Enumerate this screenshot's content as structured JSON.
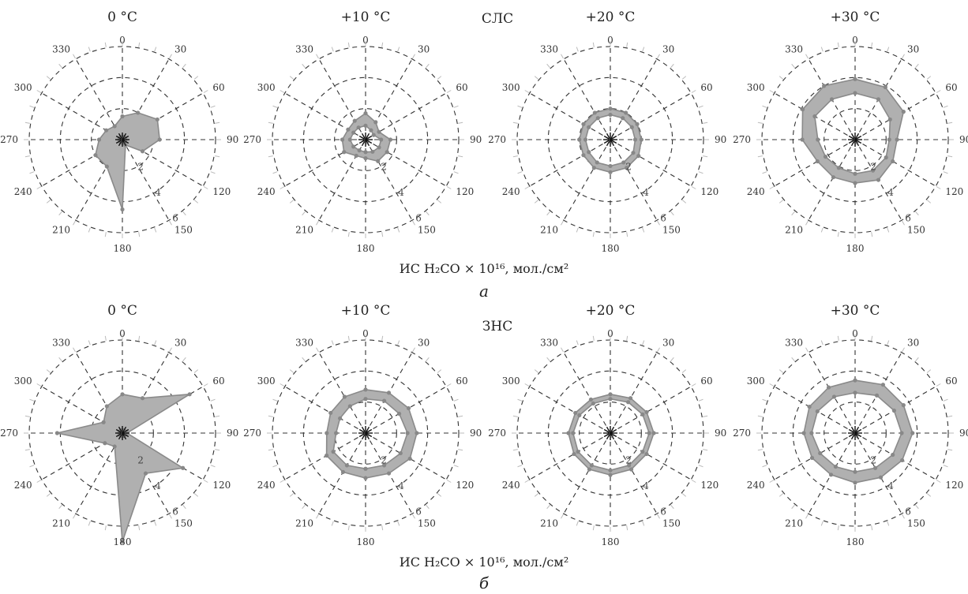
{
  "figure": {
    "rows": [
      {
        "panel_letter": "а",
        "group_label": "СЛС",
        "axis_caption": "ИС H₂CO × 10¹⁶, мол./см²"
      },
      {
        "panel_letter": "б",
        "group_label": "ЗНС",
        "axis_caption": "ИС H₂CO × 10¹⁶, мол./см²"
      }
    ]
  },
  "chart_data": [
    {
      "type": "radar",
      "row": 0,
      "group": "СЛС",
      "title": "0 °C",
      "angular_ticks": [
        "0",
        "30",
        "60",
        "90",
        "120",
        "150",
        "180",
        "210",
        "240",
        "270",
        "300",
        "330"
      ],
      "radial_ticks": [
        "0",
        "2",
        "4",
        "6"
      ],
      "rlim": [
        0,
        6
      ],
      "grid": true,
      "series": [
        {
          "inner": [
            0.2,
            0.2,
            0.2,
            0.2,
            0.2,
            0.2,
            0.2,
            0.2,
            0.2,
            0.2,
            0.2,
            0.2
          ],
          "outer": [
            1.5,
            2.0,
            2.6,
            2.4,
            1.5,
            0.4,
            4.5,
            2.0,
            2.0,
            1.5,
            1.2,
            1.0
          ]
        }
      ]
    },
    {
      "type": "radar",
      "row": 0,
      "group": "СЛС",
      "title": "+10 °C",
      "angular_ticks": [
        "0",
        "30",
        "60",
        "90",
        "120",
        "150",
        "180",
        "210",
        "240",
        "270",
        "300",
        "330"
      ],
      "radial_ticks": [
        "0",
        "2",
        "4",
        "6"
      ],
      "rlim": [
        0,
        6
      ],
      "grid": true,
      "series": [
        {
          "inner": [
            0.9,
            0.7,
            0.6,
            1.0,
            1.0,
            0.9,
            0.8,
            0.8,
            0.9,
            1.0,
            0.9,
            0.9
          ],
          "outer": [
            1.7,
            1.3,
            1.0,
            1.6,
            1.6,
            1.6,
            1.2,
            1.2,
            1.6,
            1.5,
            1.3,
            1.4
          ]
        }
      ]
    },
    {
      "type": "radar",
      "row": 0,
      "group": "СЛС",
      "title": "+20 °C",
      "angular_ticks": [
        "0",
        "30",
        "60",
        "90",
        "120",
        "150",
        "180",
        "210",
        "240",
        "270",
        "300",
        "330"
      ],
      "radial_ticks": [
        "0",
        "2",
        "4",
        "6"
      ],
      "rlim": [
        0,
        6
      ],
      "grid": true,
      "series": [
        {
          "inner": [
            1.6,
            1.6,
            1.6,
            1.6,
            1.7,
            1.7,
            1.7,
            1.7,
            1.6,
            1.6,
            1.6,
            1.6
          ],
          "outer": [
            2.0,
            2.0,
            2.0,
            2.0,
            2.1,
            2.1,
            2.1,
            2.1,
            2.0,
            2.0,
            2.0,
            2.0
          ]
        }
      ]
    },
    {
      "type": "radar",
      "row": 0,
      "group": "СЛС",
      "title": "+30 °C",
      "angular_ticks": [
        "0",
        "30",
        "60",
        "90",
        "120",
        "150",
        "180",
        "210",
        "240",
        "270",
        "300",
        "330"
      ],
      "radial_ticks": [
        "0",
        "2",
        "4",
        "6"
      ],
      "rlim": [
        0,
        6
      ],
      "grid": true,
      "series": [
        {
          "inner": [
            3.0,
            3.0,
            2.6,
            2.2,
            2.3,
            2.3,
            2.2,
            2.1,
            2.2,
            2.4,
            3.0,
            3.0
          ],
          "outer": [
            3.9,
            3.9,
            3.6,
            2.7,
            2.8,
            3.0,
            2.8,
            2.8,
            2.8,
            3.4,
            3.9,
            4.0
          ]
        }
      ]
    },
    {
      "type": "radar",
      "row": 1,
      "group": "ЗНС",
      "title": "0 °C",
      "angular_ticks": [
        "0",
        "30",
        "60",
        "90",
        "120",
        "150",
        "180",
        "210",
        "240",
        "270",
        "300",
        "330"
      ],
      "radial_ticks": [
        "0",
        "2",
        "4",
        "6"
      ],
      "rlim": [
        0,
        6
      ],
      "grid": true,
      "series": [
        {
          "inner": [
            0.2,
            0.2,
            0.2,
            0.2,
            0.2,
            0.2,
            0.2,
            0.2,
            0.2,
            0.2,
            0.2,
            0.2
          ],
          "outer": [
            2.5,
            2.6,
            5.0,
            0.3,
            4.5,
            3.0,
            7.0,
            1.0,
            1.3,
            4.2,
            1.4,
            2.0
          ]
        }
      ]
    },
    {
      "type": "radar",
      "row": 1,
      "group": "ЗНС",
      "title": "+10 °C",
      "angular_ticks": [
        "0",
        "30",
        "60",
        "90",
        "120",
        "150",
        "180",
        "210",
        "240",
        "270",
        "300",
        "330"
      ],
      "radial_ticks": [
        "0",
        "2",
        "4",
        "6"
      ],
      "rlim": [
        0,
        6
      ],
      "grid": true,
      "series": [
        {
          "inner": [
            2.2,
            2.4,
            2.5,
            2.7,
            2.6,
            2.4,
            2.3,
            2.4,
            2.4,
            1.9,
            1.9,
            2.0
          ],
          "outer": [
            2.8,
            3.0,
            3.2,
            3.3,
            3.3,
            3.0,
            2.9,
            2.9,
            2.9,
            2.5,
            2.6,
            2.7
          ]
        }
      ]
    },
    {
      "type": "radar",
      "row": 1,
      "group": "ЗНС",
      "title": "+20 °C",
      "angular_ticks": [
        "0",
        "30",
        "60",
        "90",
        "120",
        "150",
        "180",
        "210",
        "240",
        "270",
        "300",
        "330"
      ],
      "radial_ticks": [
        "0",
        "2",
        "4",
        "6"
      ],
      "rlim": [
        0,
        6
      ],
      "grid": true,
      "series": [
        {
          "inner": [
            2.2,
            2.3,
            2.4,
            2.5,
            2.4,
            2.4,
            2.4,
            2.4,
            2.4,
            2.4,
            2.3,
            2.2
          ],
          "outer": [
            2.5,
            2.6,
            2.7,
            2.8,
            2.7,
            2.7,
            2.7,
            2.7,
            2.7,
            2.7,
            2.6,
            2.5
          ]
        }
      ]
    },
    {
      "type": "radar",
      "row": 1,
      "group": "ЗНС",
      "title": "+30 °C",
      "angular_ticks": [
        "0",
        "30",
        "60",
        "90",
        "120",
        "150",
        "180",
        "210",
        "240",
        "270",
        "300",
        "330"
      ],
      "radial_ticks": [
        "0",
        "2",
        "4",
        "6"
      ],
      "rlim": [
        0,
        6
      ],
      "grid": true,
      "series": [
        {
          "inner": [
            2.6,
            2.8,
            2.9,
            3.0,
            2.8,
            2.6,
            2.5,
            2.5,
            2.6,
            2.8,
            2.8,
            2.7
          ],
          "outer": [
            3.4,
            3.6,
            3.6,
            3.7,
            3.5,
            3.3,
            3.2,
            3.1,
            3.2,
            3.3,
            3.4,
            3.4
          ]
        }
      ]
    }
  ]
}
